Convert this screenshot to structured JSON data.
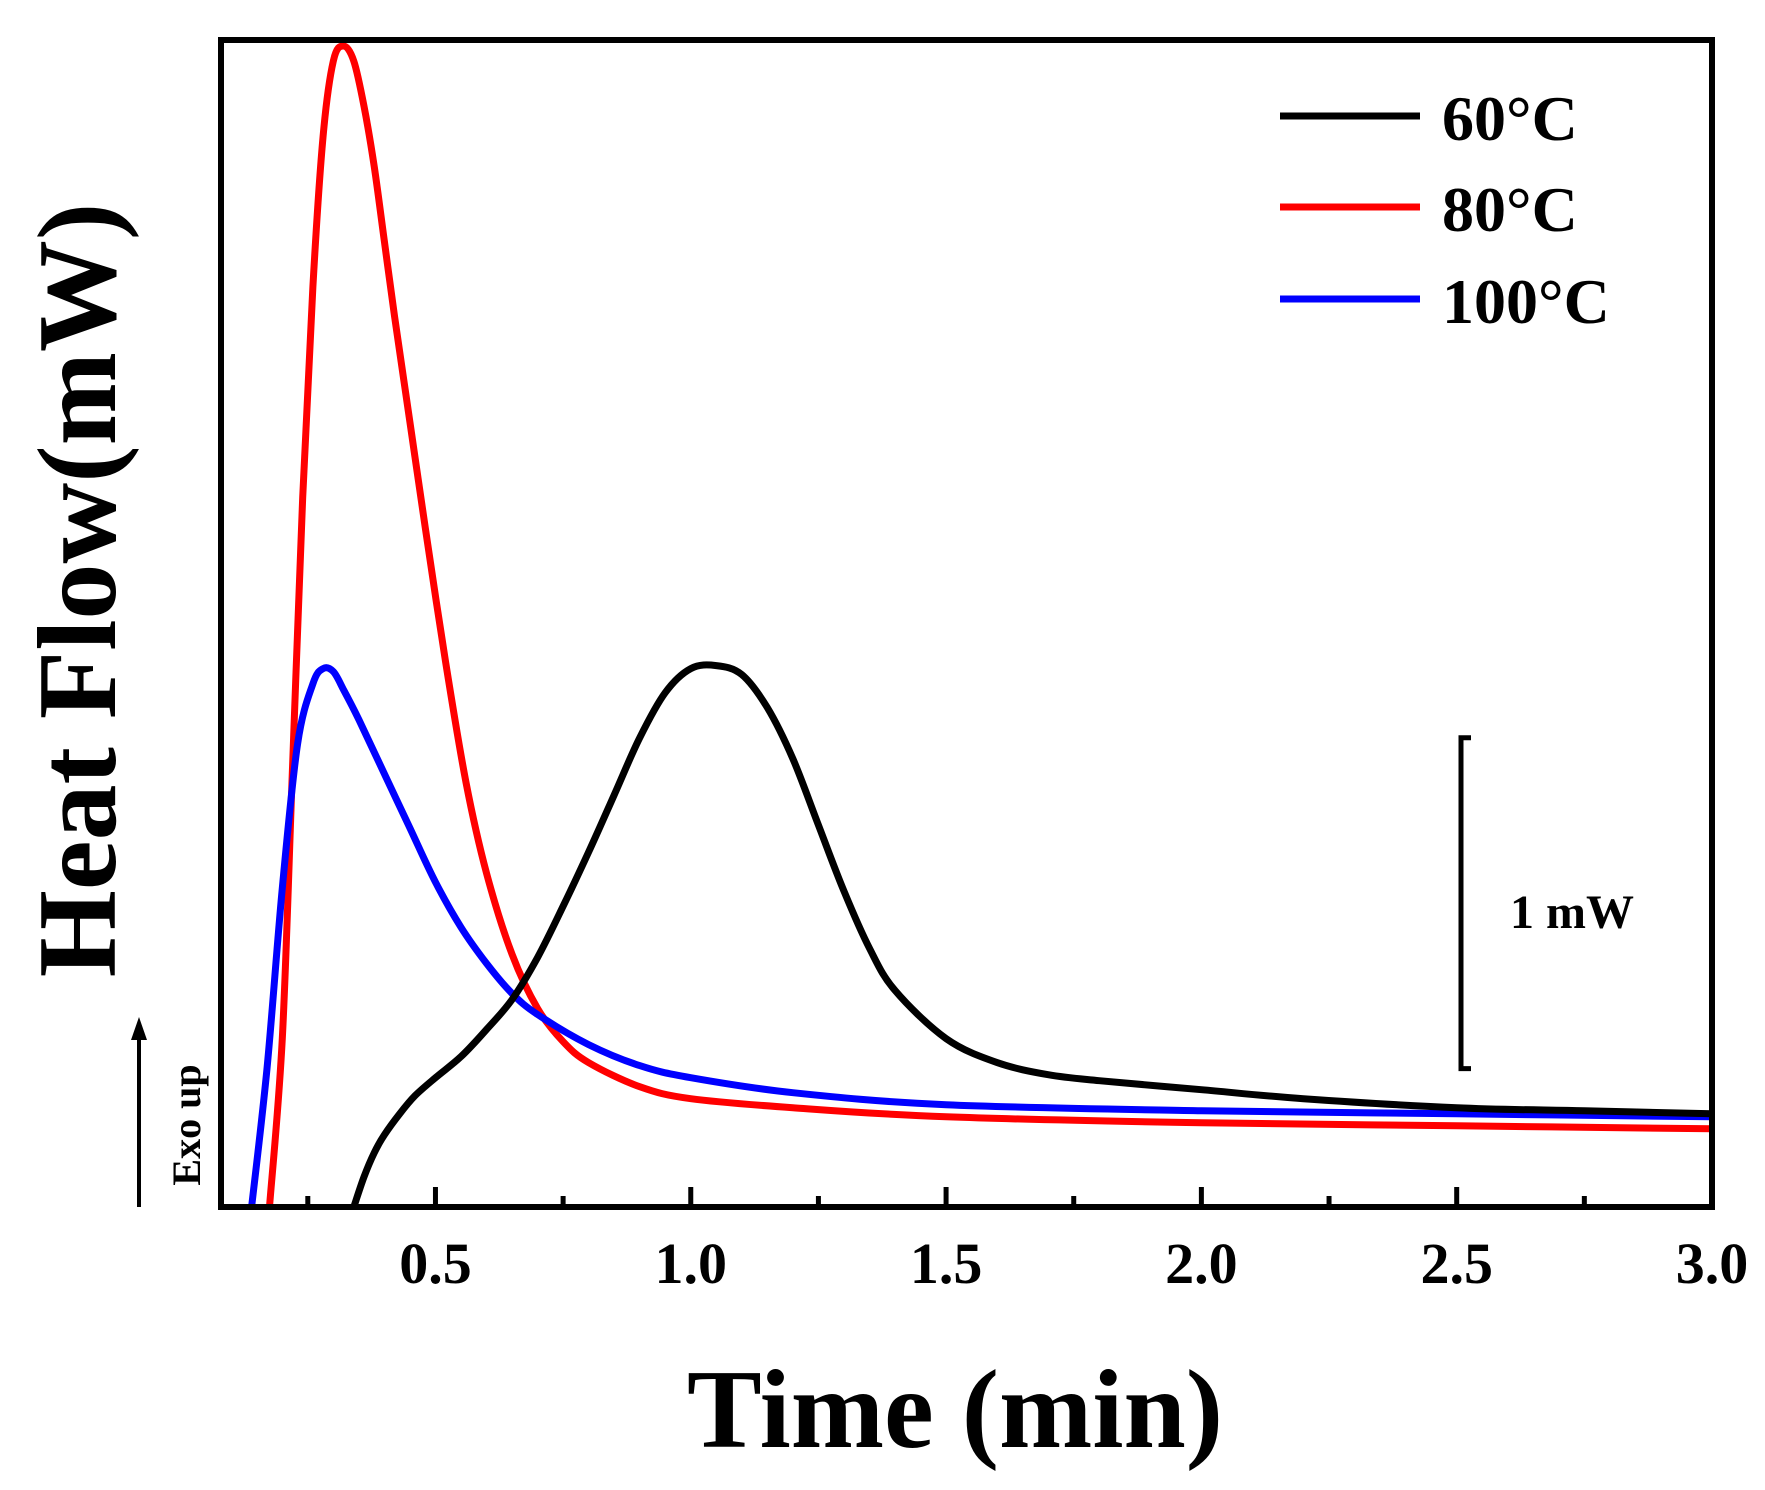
{
  "chart_data": {
    "type": "line",
    "xlabel": "Time (min)",
    "ylabel": "Heat Flow(mW)",
    "xlim": [
      0.08,
      3.0
    ],
    "ylim": [
      -0.36,
      3.52
    ],
    "xticks": [
      {
        "value": 0.5,
        "label": "0.5"
      },
      {
        "value": 1.0,
        "label": "1.0"
      },
      {
        "value": 1.5,
        "label": "1.5"
      },
      {
        "value": 2.0,
        "label": "2.0"
      },
      {
        "value": 2.5,
        "label": "2.5"
      },
      {
        "value": 3.0,
        "label": "3.0"
      }
    ],
    "minor_xticks": [
      0.25,
      0.75,
      1.25,
      1.75,
      2.25,
      2.75
    ],
    "grid": false,
    "legend_position": "top-right",
    "annotations": {
      "scale_bar_label": "1 mW",
      "scale_bar_from": 0.1,
      "scale_bar_to": 1.2,
      "exo_label": "Exo up"
    },
    "series": [
      {
        "name": "60°C",
        "color": "#000000",
        "x": [
          0.34,
          0.36,
          0.38,
          0.4,
          0.43,
          0.46,
          0.5,
          0.55,
          0.6,
          0.65,
          0.7,
          0.75,
          0.8,
          0.85,
          0.9,
          0.95,
          1.0,
          1.05,
          1.1,
          1.15,
          1.2,
          1.25,
          1.3,
          1.35,
          1.4,
          1.5,
          1.6,
          1.7,
          1.8,
          2.0,
          2.2,
          2.5,
          2.75,
          3.0
        ],
        "y": [
          -0.36,
          -0.26,
          -0.18,
          -0.12,
          -0.05,
          0.01,
          0.07,
          0.14,
          0.23,
          0.33,
          0.47,
          0.64,
          0.82,
          1.01,
          1.2,
          1.35,
          1.43,
          1.44,
          1.41,
          1.3,
          1.13,
          0.91,
          0.69,
          0.5,
          0.36,
          0.2,
          0.12,
          0.08,
          0.06,
          0.03,
          0.0,
          -0.03,
          -0.04,
          -0.05
        ]
      },
      {
        "name": "80°C",
        "color": "#ff0000",
        "x": [
          0.175,
          0.2,
          0.22,
          0.24,
          0.26,
          0.28,
          0.3,
          0.32,
          0.34,
          0.36,
          0.38,
          0.4,
          0.42,
          0.45,
          0.48,
          0.52,
          0.56,
          0.6,
          0.65,
          0.7,
          0.75,
          0.8,
          0.9,
          1.0,
          1.2,
          1.5,
          2.0,
          2.5,
          3.0
        ],
        "y": [
          -0.36,
          0.2,
          1.1,
          2.0,
          2.7,
          3.2,
          3.45,
          3.5,
          3.45,
          3.3,
          3.1,
          2.85,
          2.6,
          2.25,
          1.9,
          1.45,
          1.05,
          0.75,
          0.48,
          0.3,
          0.19,
          0.12,
          0.04,
          0.0,
          -0.03,
          -0.06,
          -0.08,
          -0.09,
          -0.1
        ]
      },
      {
        "name": "100°C",
        "color": "#0000ff",
        "x": [
          0.14,
          0.17,
          0.2,
          0.23,
          0.26,
          0.28,
          0.3,
          0.32,
          0.35,
          0.4,
          0.45,
          0.5,
          0.55,
          0.6,
          0.65,
          0.7,
          0.8,
          0.9,
          1.0,
          1.2,
          1.5,
          2.0,
          2.5,
          3.0
        ],
        "y": [
          -0.36,
          0.1,
          0.7,
          1.18,
          1.38,
          1.43,
          1.42,
          1.36,
          1.26,
          1.08,
          0.9,
          0.72,
          0.57,
          0.45,
          0.35,
          0.28,
          0.18,
          0.11,
          0.07,
          0.02,
          -0.02,
          -0.04,
          -0.05,
          -0.06
        ]
      }
    ]
  }
}
